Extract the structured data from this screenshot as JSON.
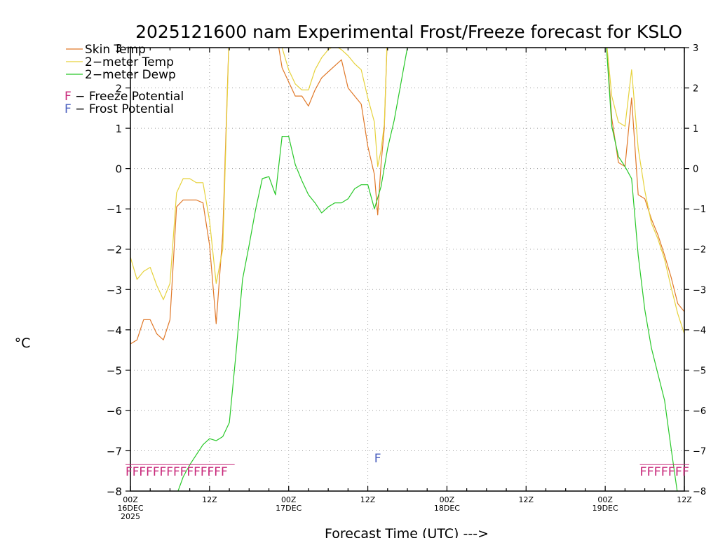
{
  "chart_data": {
    "type": "line",
    "title": "2025121600 nam Experimental Frost/Freeze forecast for KSLO",
    "ylabel": "°C",
    "xlabel": "Forecast Time (UTC) --->",
    "ylim": [
      -8,
      3
    ],
    "xlim": [
      0,
      84
    ],
    "y_ticks": [
      "3",
      "2",
      "1",
      "0",
      "−1",
      "−2",
      "−3",
      "−4",
      "−5",
      "−6",
      "−7",
      "−8"
    ],
    "y_tick_values": [
      3,
      2,
      1,
      0,
      -1,
      -2,
      -3,
      -4,
      -5,
      -6,
      -7,
      -8
    ],
    "x_ticks": [
      {
        "hour": 0,
        "lines": [
          "00Z",
          "16DEC",
          "2025"
        ]
      },
      {
        "hour": 12,
        "lines": [
          "12Z"
        ]
      },
      {
        "hour": 24,
        "lines": [
          "00Z",
          "17DEC"
        ]
      },
      {
        "hour": 36,
        "lines": [
          "12Z"
        ]
      },
      {
        "hour": 48,
        "lines": [
          "00Z",
          "18DEC"
        ]
      },
      {
        "hour": 60,
        "lines": [
          "12Z"
        ]
      },
      {
        "hour": 72,
        "lines": [
          "00Z",
          "19DEC"
        ]
      },
      {
        "hour": 84,
        "lines": [
          "12Z"
        ]
      }
    ],
    "grid": true,
    "legend_position": "top-left",
    "series": [
      {
        "name": "Skin Temp",
        "color": "#e07828",
        "points": [
          [
            0,
            -4.35
          ],
          [
            1,
            -4.25
          ],
          [
            2,
            -3.75
          ],
          [
            3,
            -3.75
          ],
          [
            4,
            -4.1
          ],
          [
            5,
            -4.25
          ],
          [
            6,
            -3.75
          ],
          [
            7,
            -0.95
          ],
          [
            8,
            -0.78
          ],
          [
            9,
            -0.78
          ],
          [
            10,
            -0.78
          ],
          [
            11,
            -0.85
          ],
          [
            12,
            -1.9
          ],
          [
            13,
            -3.85
          ],
          [
            14,
            -1.6
          ],
          [
            15,
            3.5
          ],
          [
            22,
            3.5
          ],
          [
            23,
            2.5
          ],
          [
            24,
            2.15
          ],
          [
            25,
            1.8
          ],
          [
            26,
            1.8
          ],
          [
            27,
            1.55
          ],
          [
            28,
            1.95
          ],
          [
            29,
            2.25
          ],
          [
            30,
            2.4
          ],
          [
            31,
            2.55
          ],
          [
            32,
            2.7
          ],
          [
            33,
            2.0
          ],
          [
            34,
            1.8
          ],
          [
            35,
            1.6
          ],
          [
            36,
            0.55
          ],
          [
            37,
            -0.15
          ],
          [
            37.5,
            -1.15
          ],
          [
            38,
            0.1
          ],
          [
            38.5,
            1.0
          ],
          [
            39,
            3.5
          ],
          [
            72,
            3.5
          ],
          [
            73,
            1.25
          ],
          [
            74,
            0.15
          ],
          [
            75,
            0.05
          ],
          [
            76,
            1.75
          ],
          [
            77,
            -0.65
          ],
          [
            78,
            -0.75
          ],
          [
            79,
            -1.25
          ],
          [
            80,
            -1.65
          ],
          [
            81,
            -2.15
          ],
          [
            82,
            -2.7
          ],
          [
            83,
            -3.35
          ],
          [
            84,
            -3.55
          ]
        ]
      },
      {
        "name": "2-meter Temp",
        "color": "#e6d23c",
        "points": [
          [
            0,
            -2.2
          ],
          [
            1,
            -2.75
          ],
          [
            2,
            -2.55
          ],
          [
            3,
            -2.45
          ],
          [
            4,
            -2.9
          ],
          [
            5,
            -3.25
          ],
          [
            6,
            -2.85
          ],
          [
            7,
            -0.6
          ],
          [
            8,
            -0.25
          ],
          [
            9,
            -0.25
          ],
          [
            10,
            -0.35
          ],
          [
            11,
            -0.35
          ],
          [
            12,
            -1.3
          ],
          [
            13,
            -2.85
          ],
          [
            14,
            -2.0
          ],
          [
            15,
            3.5
          ],
          [
            22,
            3.5
          ],
          [
            23,
            3.0
          ],
          [
            24,
            2.45
          ],
          [
            25,
            2.1
          ],
          [
            26,
            1.95
          ],
          [
            27,
            1.95
          ],
          [
            28,
            2.45
          ],
          [
            29,
            2.75
          ],
          [
            30,
            2.95
          ],
          [
            31,
            3.05
          ],
          [
            32,
            2.95
          ],
          [
            33,
            2.8
          ],
          [
            34,
            2.6
          ],
          [
            35,
            2.45
          ],
          [
            36,
            1.75
          ],
          [
            37,
            1.15
          ],
          [
            37.5,
            0.05
          ],
          [
            38,
            0.45
          ],
          [
            38.5,
            1.1
          ],
          [
            39,
            3.5
          ],
          [
            72,
            3.5
          ],
          [
            73,
            1.8
          ],
          [
            74,
            1.15
          ],
          [
            75,
            1.05
          ],
          [
            76,
            2.45
          ],
          [
            77,
            0.5
          ],
          [
            78,
            -0.55
          ],
          [
            79,
            -1.35
          ],
          [
            80,
            -1.75
          ],
          [
            81,
            -2.25
          ],
          [
            82,
            -2.95
          ],
          [
            83,
            -3.6
          ],
          [
            84,
            -4.1
          ]
        ]
      },
      {
        "name": "2-meter Dewp",
        "color": "#28c828",
        "points": [
          [
            7,
            -8.1
          ],
          [
            8,
            -7.65
          ],
          [
            9,
            -7.35
          ],
          [
            10,
            -7.1
          ],
          [
            11,
            -6.85
          ],
          [
            12,
            -6.7
          ],
          [
            13,
            -6.75
          ],
          [
            14,
            -6.65
          ],
          [
            15,
            -6.3
          ],
          [
            16,
            -4.6
          ],
          [
            17,
            -2.75
          ],
          [
            18,
            -1.9
          ],
          [
            19,
            -1.0
          ],
          [
            20,
            -0.25
          ],
          [
            21,
            -0.2
          ],
          [
            22,
            -0.65
          ],
          [
            23,
            0.8
          ],
          [
            24,
            0.8
          ],
          [
            25,
            0.1
          ],
          [
            26,
            -0.3
          ],
          [
            27,
            -0.65
          ],
          [
            28,
            -0.85
          ],
          [
            29,
            -1.1
          ],
          [
            30,
            -0.95
          ],
          [
            31,
            -0.85
          ],
          [
            32,
            -0.85
          ],
          [
            33,
            -0.75
          ],
          [
            34,
            -0.5
          ],
          [
            35,
            -0.4
          ],
          [
            36,
            -0.4
          ],
          [
            37,
            -1.0
          ],
          [
            38,
            -0.45
          ],
          [
            39,
            0.5
          ],
          [
            40,
            1.2
          ],
          [
            41,
            2.1
          ],
          [
            42,
            3.0
          ],
          [
            43,
            3.5
          ],
          [
            72,
            3.5
          ],
          [
            73,
            1.05
          ],
          [
            74,
            0.3
          ],
          [
            75,
            0.05
          ],
          [
            76,
            -0.25
          ],
          [
            77,
            -2.15
          ],
          [
            78,
            -3.5
          ],
          [
            79,
            -4.45
          ],
          [
            80,
            -5.1
          ],
          [
            81,
            -5.75
          ],
          [
            82,
            -6.95
          ],
          [
            83,
            -8.1
          ]
        ]
      }
    ],
    "legend": [
      {
        "label": "Skin Temp",
        "color": "#e07828"
      },
      {
        "label": "2−meter Temp",
        "color": "#e6d23c"
      },
      {
        "label": "2−meter Dewp",
        "color": "#28c828"
      }
    ],
    "potential_legend": [
      {
        "letter": "F",
        "label": " − Freeze Potential",
        "color": "#c8287a"
      },
      {
        "letter": "F",
        "label": " − Frost Potential",
        "color": "#4b5fbe"
      }
    ],
    "freeze_markers": {
      "color": "#c8287a",
      "value": -7.5,
      "hours": [
        0,
        1,
        2,
        3,
        4,
        5,
        6,
        7,
        8,
        9,
        10,
        11,
        12,
        13,
        14,
        78,
        79,
        80,
        81,
        82,
        83,
        84
      ],
      "text": [
        "FFFFFFFFFFFFFFF",
        "FFFFFFF"
      ]
    },
    "frost_markers": {
      "color": "#4b5fbe",
      "value": -7.15,
      "hours": [
        37.5
      ],
      "text": "F"
    }
  }
}
